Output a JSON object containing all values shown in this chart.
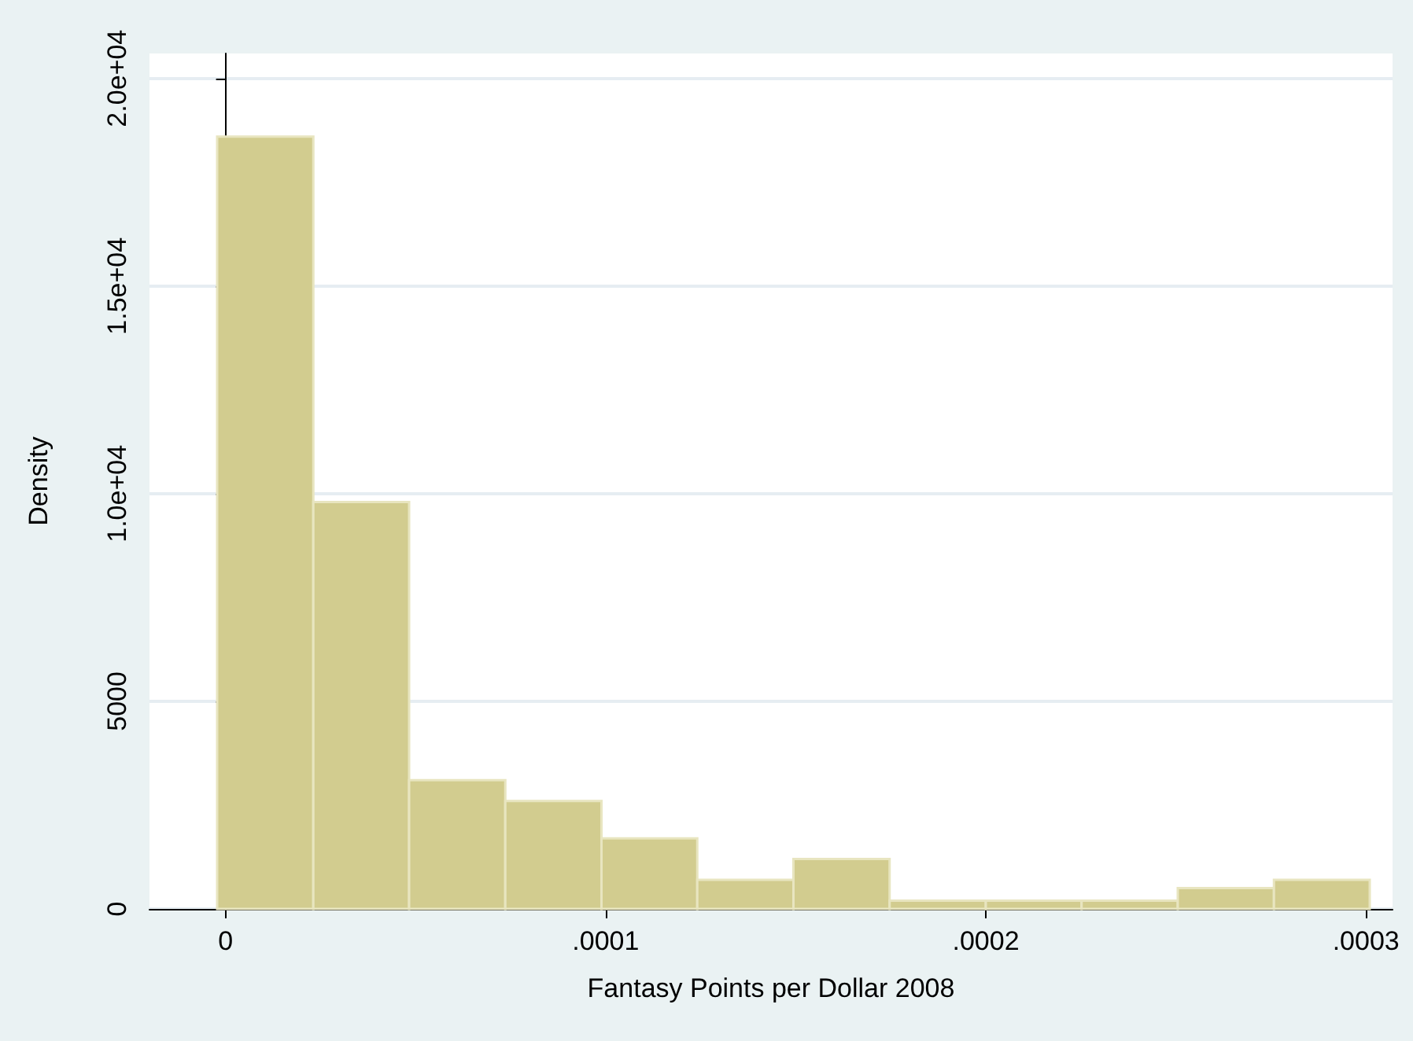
{
  "chart_data": {
    "type": "histogram",
    "xlabel": "Fantasy Points per Dollar 2008",
    "ylabel": "Density",
    "bins": [
      -2.2e-06,
      2.31e-05,
      4.83e-05,
      7.36e-05,
      9.89e-05,
      0.0001241,
      0.0001494,
      0.0001747,
      0.0002,
      0.0002252,
      0.0002505,
      0.0002758,
      0.000301
    ],
    "values": [
      18600,
      9800,
      3100,
      2600,
      1700,
      700,
      1200,
      200,
      200,
      200,
      500,
      700
    ],
    "color": "#d2cc8f",
    "xlim": [
      -2e-05,
      0.000307
    ],
    "xticks": [
      0,
      {
        "value": 0.0001,
        "label": ".0001"
      },
      {
        "value": 0.0002,
        "label": ".0002"
      },
      {
        "value": 0.0003,
        "label": ".0003"
      }
    ],
    "ylim": [
      0,
      20600
    ],
    "yticks": [
      0,
      5000,
      {
        "value": 10000,
        "label": "1.0e+04"
      },
      {
        "value": 15000,
        "label": "1.5e+04"
      },
      {
        "value": 20000,
        "label": "2.0e+04"
      }
    ],
    "grid": "y"
  }
}
